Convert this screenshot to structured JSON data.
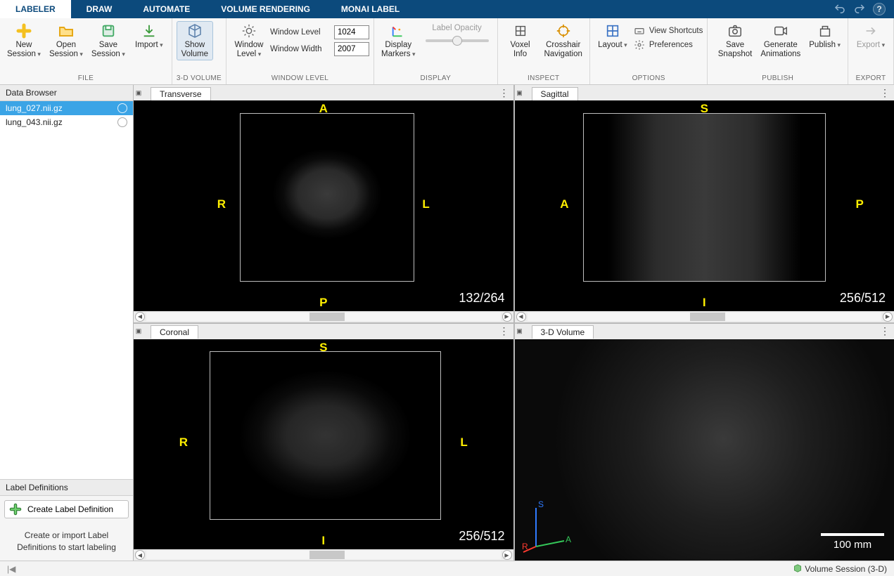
{
  "colors": {
    "ribbon_header": "#0c4a7c",
    "selection": "#3ba4e6",
    "orientation_text": "#ffef00",
    "plus_green": "#4caf50",
    "plus_border": "#2e7d32"
  },
  "tabs": {
    "items": [
      "LABELER",
      "DRAW",
      "AUTOMATE",
      "VOLUME RENDERING",
      "MONAI LABEL"
    ],
    "active_index": 0
  },
  "ribbon": {
    "file": {
      "label": "FILE",
      "new_session": "New\nSession",
      "open_session": "Open\nSession",
      "save_session": "Save\nSession",
      "import": "Import"
    },
    "volume3d": {
      "label": "3-D VOLUME",
      "show_volume": "Show\nVolume"
    },
    "window_level": {
      "label": "WINDOW LEVEL",
      "window_level_btn": "Window\nLevel",
      "wl_label": "Window Level",
      "wl_value": "1024",
      "ww_label": "Window Width",
      "ww_value": "2007"
    },
    "display": {
      "label": "DISPLAY",
      "display_markers": "Display\nMarkers",
      "label_opacity": "Label Opacity"
    },
    "inspect": {
      "label": "INSPECT",
      "voxel_info": "Voxel\nInfo",
      "crosshair": "Crosshair\nNavigation"
    },
    "options": {
      "label": "OPTIONS",
      "layout": "Layout",
      "view_shortcuts": "View Shortcuts",
      "preferences": "Preferences"
    },
    "publish": {
      "label": "PUBLISH",
      "save_snapshot": "Save\nSnapshot",
      "generate_animations": "Generate\nAnimations",
      "publish": "Publish"
    },
    "export": {
      "label": "EXPORT",
      "export": "Export"
    }
  },
  "sidebar": {
    "data_browser_title": "Data Browser",
    "files": [
      {
        "name": "lung_027.nii.gz",
        "selected": true,
        "visible": true
      },
      {
        "name": "lung_043.nii.gz",
        "selected": false,
        "visible": false
      }
    ],
    "label_defs_title": "Label Definitions",
    "create_label": "Create Label Definition",
    "hint": "Create or import Label Definitions to start labeling"
  },
  "views": {
    "transverse": {
      "title": "Transverse",
      "top": "A",
      "bottom": "P",
      "left": "R",
      "right": "L",
      "slice": "132/264",
      "scroll_thumb": {
        "left_pct": 46,
        "width_pct": 10
      }
    },
    "sagittal": {
      "title": "Sagittal",
      "top": "S",
      "bottom": "I",
      "left": "A",
      "right": "P",
      "slice": "256/512",
      "scroll_thumb": {
        "left_pct": 46,
        "width_pct": 10
      }
    },
    "coronal": {
      "title": "Coronal",
      "top": "S",
      "bottom": "I",
      "left": "R",
      "right": "L",
      "slice": "256/512",
      "scroll_thumb": {
        "left_pct": 46,
        "width_pct": 10
      }
    },
    "volume": {
      "title": "3-D Volume",
      "axes": {
        "s": "S",
        "r": "R",
        "a": "A",
        "s_color": "#2f7bff",
        "r_color": "#ff3b30",
        "a_color": "#34c759"
      },
      "scale_label": "100 mm"
    }
  },
  "status": {
    "right": "Volume Session (3-D)"
  }
}
